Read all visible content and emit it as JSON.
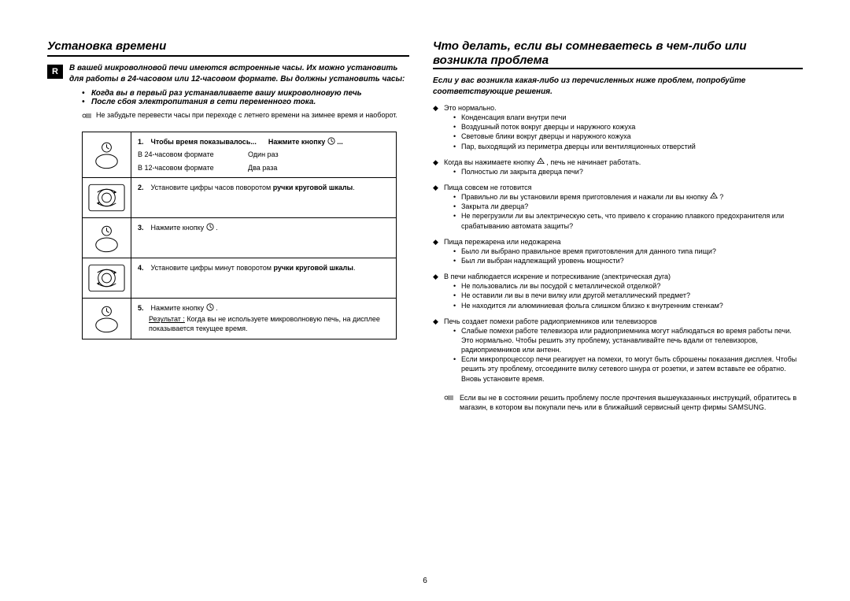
{
  "page_number": "6",
  "lang_tab": "R",
  "left": {
    "title": "Установка времени",
    "intro": "В вашей микроволновой печи имеются встроенные часы. Их можно установить для работы в 24-часовом или 12-часовом формате. Вы должны установить часы:",
    "bullets": [
      "Когда вы в первый раз устанавливаете вашу микроволновую печь",
      "После сбоя электропитания в сети переменного тока."
    ],
    "note": "Не забудьте перевести часы при переходе с летнего времени на зимнее время и наоборот.",
    "steps": [
      {
        "num": "1.",
        "head_a": "Чтобы время показывалось...",
        "head_b": "Нажмите кнопку",
        "rows": [
          [
            "В 24-часовом формате",
            "Один раз"
          ],
          [
            "В 12-часовом формате",
            "Два раза"
          ]
        ],
        "thumb": "clock"
      },
      {
        "num": "2.",
        "text_a": "Установите цифры часов поворотом ",
        "text_b": "ручки круговой шкалы",
        "text_c": ".",
        "thumb": "dial"
      },
      {
        "num": "3.",
        "text_a": "Нажмите кнопку ",
        "text_c": " .",
        "thumb": "clock",
        "clock_after": true
      },
      {
        "num": "4.",
        "text_a": "Установите цифры минут поворотом ",
        "text_b": "ручки круговой шкалы",
        "text_c": ".",
        "thumb": "dial"
      },
      {
        "num": "5.",
        "text_a": "Нажмите кнопку ",
        "text_c": " .",
        "result_label": "Результат :",
        "result": " Когда вы не используете микроволновую печь, на дисплее показывается текущее время.",
        "thumb": "clock",
        "clock_after": true
      }
    ]
  },
  "right": {
    "title": "Что делать, если вы сомневаетесь в чем-либо или возникла проблема",
    "intro": "Если у вас возникла какая-либо из перечисленных ниже проблем, попробуйте соответствующие решения.",
    "sections": [
      {
        "head": "Это нормально.",
        "items": [
          "Конденсация влаги внутри печи",
          "Воздушный поток вокруг дверцы и наружного кожуха",
          "Световые блики вокруг дверцы и наружного кожуха",
          "Пар, выходящий из периметра дверцы или вентиляционных отверстий"
        ]
      },
      {
        "head_pre": "Когда вы нажимаете кнопку ",
        "head_post": " , печь не начинает работать.",
        "start_icon": true,
        "items": [
          "Полностью ли закрыта дверца печи?"
        ]
      },
      {
        "head": "Пища совсем не готовится",
        "items": [
          {
            "pre": "Правильно ли вы установили время приготовления и нажали ли вы кнопку ",
            "post": " ?",
            "start_icon": true
          },
          "Закрыта ли дверца?",
          "Не перегрузили ли вы электрическую сеть, что привело к сгоранию плавкого предохранителя или срабатыванию автомата защиты?"
        ]
      },
      {
        "head": "Пища пережарена или недожарена",
        "items": [
          "Было ли выбрано правильное время приготовления для данного типа пищи?",
          "Был ли выбран надлежащий уровень мощности?"
        ]
      },
      {
        "head": "В печи наблюдается искрение и потрескивание (электрическая дуга)",
        "items": [
          "Не пользовались ли вы посудой с металлической отделкой?",
          "Не оставили ли вы в печи вилку или другой металлический предмет?",
          "Не находится ли алюминиевая фольга слишком близко к внутренним стенкам?"
        ]
      },
      {
        "head": "Печь создает помехи работе радиоприемников или телевизоров",
        "items": [
          "Слабые помехи работе телевизора или радиоприемника могут наблюдаться во время работы печи. Это нормально. Чтобы решить эту проблему, устанавливайте печь вдали от телевизоров, радиоприемников или антенн.",
          "Если микропроцессор печи реагирует на помехи, то могут быть сброшены показания дисплея. Чтобы решить эту проблему, отсоедините вилку сетевого шнура от розетки, и затем вставьте ее обратно. Вновь установите время."
        ]
      }
    ],
    "footnote": "Если вы не в состоянии решить проблему после прочтения вышеуказанных инструкций, обратитесь в магазин, в котором вы покупали печь или в ближайший сервисный центр фирмы SAMSUNG."
  }
}
